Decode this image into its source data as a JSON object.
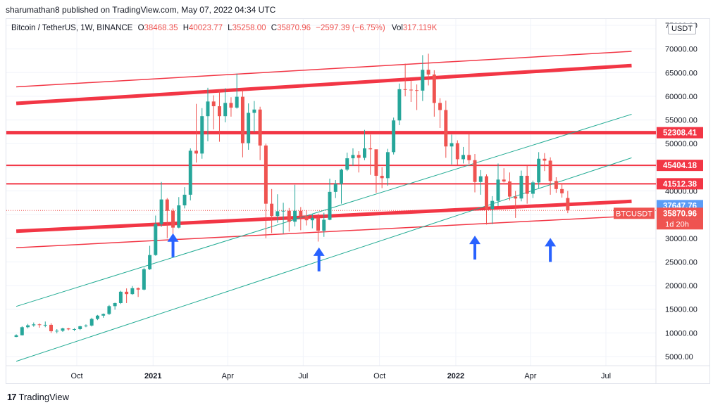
{
  "header": {
    "published_line": "sharumathan8 published on TradingView.com, May 07, 2022 04:34 UTC"
  },
  "legend": {
    "symbol": "Bitcoin / TetherUS, 1W, BINANCE",
    "o_label": "O",
    "o_value": "38468.35",
    "h_label": "H",
    "h_value": "40023.77",
    "l_label": "L",
    "l_value": "35258.00",
    "c_label": "C",
    "c_value": "35870.96",
    "change": "−2597.39 (−6.75%)",
    "vol_label": "Vol",
    "vol_value": "317.119K"
  },
  "currency_button": "USDT",
  "footer": {
    "brand": "TradingView"
  },
  "colors": {
    "up": "#26a69a",
    "down": "#ef5350",
    "hline": "#f23645",
    "trend_green": "#22ab94",
    "arrow": "#2962ff"
  },
  "chart_data": {
    "type": "candlestick",
    "yaxis": {
      "min": 5000,
      "max": 75000,
      "ticks": [
        5000,
        10000,
        15000,
        20000,
        25000,
        30000,
        35000,
        40000,
        45000,
        50000,
        55000,
        60000,
        65000,
        70000,
        75000
      ]
    },
    "ytick_labels": [
      "5000.00",
      "10000.00",
      "15000.00",
      "20000.00",
      "25000.00",
      "30000.00",
      "35000.00",
      "40000.00",
      "45000.00",
      "50000.00",
      "55000.00",
      "60000.00",
      "65000.00",
      "70000.00",
      "75000.00"
    ],
    "xaxis_labels": [
      {
        "label": "Oct",
        "date": "2020-10-01",
        "bold": false
      },
      {
        "label": "2021",
        "date": "2021-01-01",
        "bold": true
      },
      {
        "label": "Apr",
        "date": "2021-04-01",
        "bold": false
      },
      {
        "label": "Jul",
        "date": "2021-07-01",
        "bold": false
      },
      {
        "label": "Oct",
        "date": "2021-10-01",
        "bold": false
      },
      {
        "label": "2022",
        "date": "2022-01-01",
        "bold": true
      },
      {
        "label": "Apr",
        "date": "2022-04-01",
        "bold": false
      },
      {
        "label": "Jul",
        "date": "2022-07-01",
        "bold": false
      }
    ],
    "price_labels": [
      {
        "text": "52308.41",
        "value": 52308.41,
        "color": "#f23645"
      },
      {
        "text": "45404.18",
        "value": 45404.18,
        "color": "#f23645"
      },
      {
        "text": "41512.38",
        "value": 41512.38,
        "color": "#f23645"
      },
      {
        "text": "37647.76",
        "value": 37647.76,
        "color": "#5b9cf6"
      },
      {
        "text": "37647.76",
        "value": 37647.76,
        "color": "#5b9cf6"
      },
      {
        "text": "35870.96",
        "value": 35870.96,
        "color": "#ef5350"
      }
    ],
    "current_symbol_tag": "BTCUSDT",
    "countdown": "1d 20h",
    "horizontal_levels": [
      52308.41,
      45404.18,
      41512.38
    ],
    "ohlc_weekly_start": "2020-07-20",
    "ohlc": [
      [
        9150,
        9700,
        9100,
        9500
      ],
      [
        9500,
        11400,
        9450,
        11200
      ],
      [
        11200,
        11900,
        10950,
        11600
      ],
      [
        11600,
        12200,
        11300,
        11800
      ],
      [
        11800,
        12000,
        11100,
        11650
      ],
      [
        11650,
        12400,
        11200,
        11700
      ],
      [
        11700,
        12050,
        10000,
        10350
      ],
      [
        10350,
        10800,
        9900,
        10450
      ],
      [
        10450,
        11100,
        10200,
        10950
      ],
      [
        10950,
        11050,
        10550,
        10750
      ],
      [
        10750,
        11000,
        10400,
        10800
      ],
      [
        10800,
        11500,
        10600,
        11400
      ],
      [
        11400,
        11800,
        11200,
        11550
      ],
      [
        11550,
        13200,
        11350,
        12950
      ],
      [
        12950,
        13800,
        12700,
        13650
      ],
      [
        13650,
        14100,
        13200,
        14000
      ],
      [
        14000,
        15900,
        13800,
        15650
      ],
      [
        15650,
        16400,
        14900,
        16300
      ],
      [
        16300,
        18900,
        16100,
        18700
      ],
      [
        18700,
        19400,
        16300,
        18200
      ],
      [
        18200,
        19900,
        18050,
        19450
      ],
      [
        19450,
        19600,
        17600,
        19150
      ],
      [
        19150,
        23800,
        19000,
        23450
      ],
      [
        23450,
        28400,
        23300,
        26450
      ],
      [
        26450,
        34800,
        26300,
        33000
      ],
      [
        33000,
        41900,
        32400,
        38200
      ],
      [
        38200,
        38500,
        30000,
        35800
      ],
      [
        35800,
        36300,
        28800,
        32250
      ],
      [
        32250,
        38700,
        32100,
        36950
      ],
      [
        36950,
        40800,
        36300,
        39200
      ],
      [
        39200,
        49000,
        38000,
        48500
      ],
      [
        48500,
        58400,
        46000,
        47900
      ],
      [
        47900,
        57500,
        46800,
        55800
      ],
      [
        55800,
        61800,
        50500,
        58900
      ],
      [
        58900,
        60200,
        53000,
        57900
      ],
      [
        57900,
        61200,
        50400,
        55800
      ],
      [
        55800,
        61700,
        54500,
        58600
      ],
      [
        58600,
        59800,
        55700,
        57600
      ],
      [
        57600,
        64800,
        57400,
        59900
      ],
      [
        59900,
        61300,
        47100,
        50100
      ],
      [
        50100,
        58500,
        48700,
        56500
      ],
      [
        56500,
        59000,
        52400,
        57200
      ],
      [
        57200,
        57800,
        46500,
        49600
      ],
      [
        49600,
        50000,
        30000,
        37300
      ],
      [
        37300,
        40400,
        31100,
        34700
      ],
      [
        34700,
        39300,
        33300,
        35700
      ],
      [
        35700,
        37500,
        31000,
        35800
      ],
      [
        35800,
        36400,
        31400,
        33500
      ],
      [
        33500,
        41300,
        32500,
        35800
      ],
      [
        35800,
        36600,
        31700,
        34700
      ],
      [
        34700,
        35900,
        32700,
        33800
      ],
      [
        33800,
        35100,
        32100,
        34300
      ],
      [
        34300,
        35200,
        29300,
        31600
      ],
      [
        31600,
        35400,
        30300,
        33900
      ],
      [
        33900,
        42600,
        33800,
        39800
      ],
      [
        39800,
        42300,
        38500,
        41500
      ],
      [
        41500,
        44700,
        37300,
        44500
      ],
      [
        44500,
        48100,
        44200,
        46900
      ],
      [
        46900,
        49000,
        45300,
        47600
      ],
      [
        47600,
        48400,
        43900,
        47000
      ],
      [
        47000,
        52900,
        46500,
        49000
      ],
      [
        49000,
        51900,
        43400,
        48800
      ],
      [
        48800,
        48600,
        39600,
        43200
      ],
      [
        43200,
        45000,
        40600,
        42700
      ],
      [
        42700,
        48900,
        41100,
        48200
      ],
      [
        48200,
        55500,
        47700,
        54900
      ],
      [
        54900,
        62700,
        53900,
        61500
      ],
      [
        61500,
        66900,
        60000,
        61400
      ],
      [
        61400,
        63600,
        58800,
        61300
      ],
      [
        61300,
        62500,
        57100,
        61200
      ],
      [
        61200,
        68700,
        59000,
        65600
      ],
      [
        65600,
        69000,
        62300,
        64600
      ],
      [
        64600,
        65500,
        55700,
        58600
      ],
      [
        58600,
        59600,
        53300,
        57100
      ],
      [
        57100,
        59100,
        47000,
        49400
      ],
      [
        49400,
        51900,
        45600,
        50100
      ],
      [
        50100,
        50700,
        45500,
        46700
      ],
      [
        46700,
        49300,
        45800,
        47600
      ],
      [
        47600,
        52100,
        45700,
        46500
      ],
      [
        46500,
        47800,
        39700,
        41900
      ],
      [
        41900,
        44400,
        39200,
        43100
      ],
      [
        43100,
        43500,
        32900,
        36200
      ],
      [
        36200,
        38900,
        33000,
        37900
      ],
      [
        37900,
        45800,
        36800,
        42400
      ],
      [
        42400,
        44800,
        41800,
        42000
      ],
      [
        42000,
        43900,
        38000,
        38800
      ],
      [
        38800,
        40000,
        34300,
        38400
      ],
      [
        38400,
        44300,
        37800,
        43200
      ],
      [
        43200,
        45300,
        37300,
        39400
      ],
      [
        39400,
        42200,
        38500,
        41800
      ],
      [
        41800,
        48200,
        40500,
        46800
      ],
      [
        46800,
        48000,
        44200,
        46400
      ],
      [
        46400,
        47100,
        39200,
        42100
      ],
      [
        42100,
        42900,
        39600,
        40400
      ],
      [
        40400,
        41600,
        38600,
        39500
      ],
      [
        38500,
        40000,
        35300,
        35900
      ]
    ],
    "trendlines": [
      {
        "name": "",
        "kind": "red-thick",
        "p1": [
          "2020-07-20",
          58500
        ],
        "p2": [
          "2022-08-01",
          66500
        ]
      },
      {
        "name": "",
        "kind": "red-thin",
        "p1": [
          "2020-07-20",
          62000
        ],
        "p2": [
          "2022-08-01",
          69500
        ]
      },
      {
        "name": "",
        "kind": "red-thick",
        "p1": [
          "2020-07-20",
          31500
        ],
        "p2": [
          "2022-08-01",
          37800
        ]
      },
      {
        "name": "",
        "kind": "red-thin",
        "p1": [
          "2020-07-20",
          28000
        ],
        "p2": [
          "2022-08-01",
          34700
        ]
      },
      {
        "name": "",
        "kind": "green-thin",
        "p1": [
          "2020-07-20",
          15600
        ],
        "p2": [
          "2022-08-01",
          56200
        ]
      },
      {
        "name": "",
        "kind": "green-thin",
        "p1": [
          "2020-07-20",
          4000
        ],
        "p2": [
          "2022-08-01",
          47000
        ]
      }
    ],
    "arrows": [
      {
        "date": "2021-01-25",
        "price": 26000
      },
      {
        "date": "2021-07-20",
        "price": 23000
      },
      {
        "date": "2022-01-24",
        "price": 25500
      },
      {
        "date": "2022-04-25",
        "price": 25000
      }
    ]
  }
}
